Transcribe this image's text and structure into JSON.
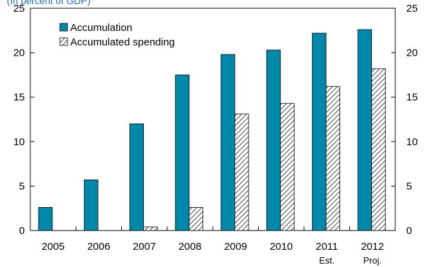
{
  "chart_data": {
    "type": "bar",
    "caption": "(In percent of GDP)",
    "categories": [
      "2005",
      "2006",
      "2007",
      "2008",
      "2009",
      "2010",
      "2011",
      "2012"
    ],
    "category_sublabels": [
      "",
      "",
      "",
      "",
      "",
      "",
      "Est.",
      "Proj."
    ],
    "series": [
      {
        "name": "Accumulation",
        "values": [
          2.6,
          5.7,
          12.0,
          17.5,
          19.8,
          20.3,
          22.2,
          22.6
        ],
        "color": "#0088aa",
        "pattern": "solid"
      },
      {
        "name": "Accumulated spending",
        "values": [
          0,
          0,
          0.4,
          2.6,
          13.1,
          14.3,
          16.2,
          18.2
        ],
        "color": "#ffffff",
        "pattern": "diagonal-hatch"
      }
    ],
    "ylim": [
      0,
      25
    ],
    "yticks": [
      0,
      5,
      10,
      15,
      20,
      25
    ],
    "right_axis_mirror": true,
    "grid": false,
    "legend_position": "top-left",
    "xlabel": "",
    "ylabel": ""
  }
}
